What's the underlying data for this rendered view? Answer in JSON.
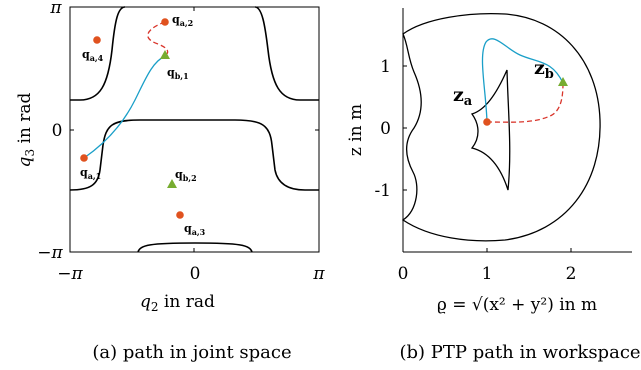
{
  "panel_a": {
    "y_top": "π",
    "y_mid": "0",
    "y_bot": "−π",
    "x_left": "−π",
    "x_mid": "0",
    "x_right": "π",
    "ylabel_sym": "q",
    "ylabel_sub": "3",
    "ylabel_text": " in rad",
    "xlabel_sym": "q",
    "xlabel_sub": "2",
    "xlabel_text": " in rad",
    "points": {
      "qa1": {
        "main": "q",
        "sub": "a,1"
      },
      "qa2": {
        "main": "q",
        "sub": "a,2"
      },
      "qa3": {
        "main": "q",
        "sub": "a,3"
      },
      "qa4": {
        "main": "q",
        "sub": "a,4"
      },
      "qb1": {
        "main": "q",
        "sub": "b,1"
      },
      "qb2": {
        "main": "q",
        "sub": "b,2"
      }
    },
    "caption": "(a) path in joint space"
  },
  "panel_b": {
    "y_ticks": [
      "1",
      "0",
      "-1"
    ],
    "x_ticks": [
      "0",
      "1",
      "2"
    ],
    "ylabel": "z in m",
    "xlabel": "ϱ = √(x² + y²) in m",
    "za": {
      "main": "z",
      "sub": "a"
    },
    "zb": {
      "main": "z",
      "sub": "b"
    },
    "caption": "(b) PTP path in workspace"
  },
  "colors": {
    "start_marker": "#e0521f",
    "goal_marker": "#77ac30",
    "path_blue": "#1a9fc8",
    "path_red": "#d9352b",
    "boundary": "#000000"
  }
}
